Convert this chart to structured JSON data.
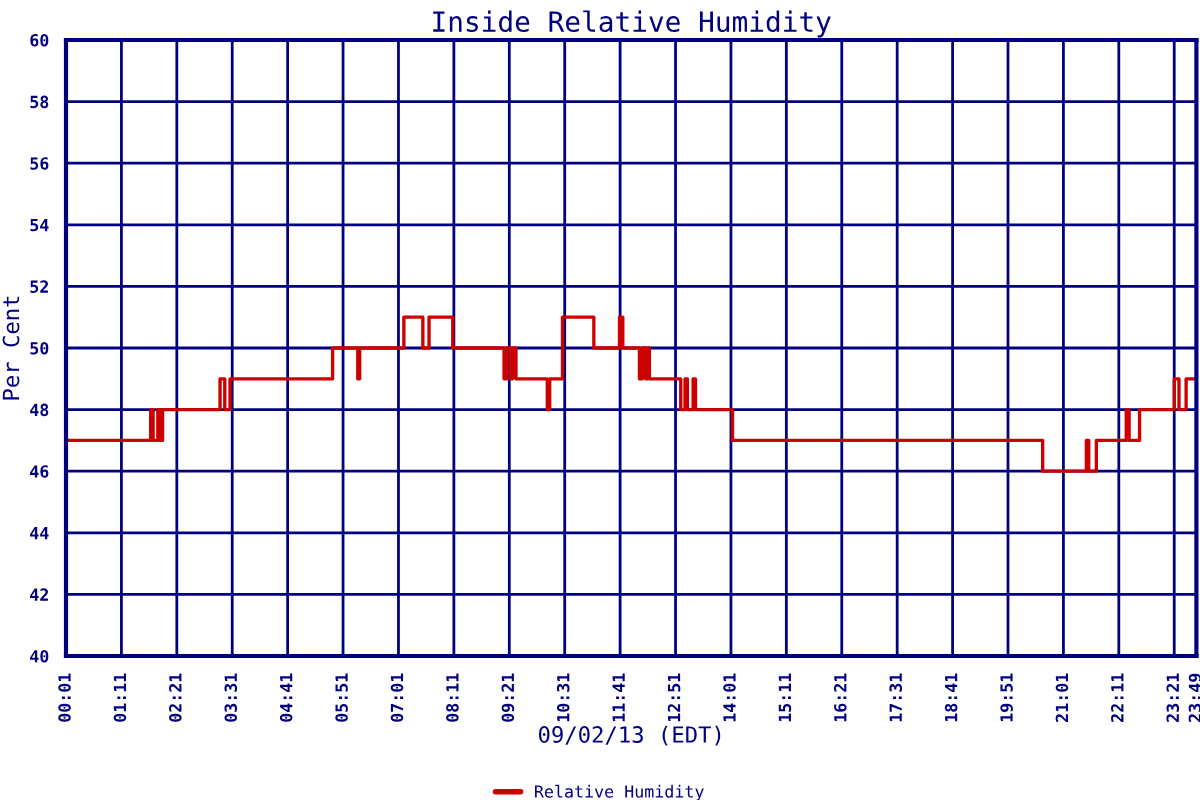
{
  "chart_data": {
    "type": "step",
    "title": "Inside Relative Humidity",
    "xlabel": "09/02/13 (EDT)",
    "ylabel": "Per Cent",
    "x": [
      0.0167,
      1.8,
      1.85,
      1.95,
      2.0,
      2.05,
      2.12,
      3.26,
      3.36,
      3.47,
      5.63,
      6.16,
      6.2,
      7.13,
      7.53,
      7.66,
      8.16,
      9.24,
      9.3,
      9.38,
      9.42,
      9.49,
      10.15,
      10.2,
      10.47,
      11.13,
      11.67,
      11.74,
      12.09,
      12.15,
      12.22,
      12.26,
      12.3,
      12.96,
      13.05,
      13.1,
      13.22,
      13.27,
      13.42,
      14.05,
      20.58,
      21.5,
      21.55,
      21.71,
      22.34,
      22.4,
      22.62,
      23.35,
      23.45,
      23.6,
      23.8
    ],
    "series": [
      {
        "name": "Relative Humidity",
        "color": "#cc0000",
        "values": [
          47,
          48,
          47,
          48,
          47,
          48,
          48,
          49,
          48,
          49,
          50,
          49,
          50,
          51,
          50,
          51,
          50,
          49,
          50,
          49,
          50,
          49,
          48,
          49,
          51,
          50,
          51,
          50,
          49,
          50,
          49,
          50,
          49,
          48,
          49,
          48,
          49,
          48,
          48,
          47,
          46,
          47,
          46,
          47,
          48,
          47,
          48,
          49,
          48,
          49,
          49
        ]
      }
    ],
    "xlim": [
      0.0167,
      23.8167
    ],
    "xticks": [
      {
        "value": 0.0167,
        "label": "00:01"
      },
      {
        "value": 1.1833,
        "label": "01:11"
      },
      {
        "value": 2.35,
        "label": "02:21"
      },
      {
        "value": 3.5167,
        "label": "03:31"
      },
      {
        "value": 4.6833,
        "label": "04:41"
      },
      {
        "value": 5.85,
        "label": "05:51"
      },
      {
        "value": 7.0167,
        "label": "07:01"
      },
      {
        "value": 8.1833,
        "label": "08:11"
      },
      {
        "value": 9.35,
        "label": "09:21"
      },
      {
        "value": 10.5167,
        "label": "10:31"
      },
      {
        "value": 11.6833,
        "label": "11:41"
      },
      {
        "value": 12.85,
        "label": "12:51"
      },
      {
        "value": 14.0167,
        "label": "14:01"
      },
      {
        "value": 15.1833,
        "label": "15:11"
      },
      {
        "value": 16.35,
        "label": "16:21"
      },
      {
        "value": 17.5167,
        "label": "17:31"
      },
      {
        "value": 18.6833,
        "label": "18:41"
      },
      {
        "value": 19.85,
        "label": "19:51"
      },
      {
        "value": 21.0167,
        "label": "21:01"
      },
      {
        "value": 22.1833,
        "label": "22:11"
      },
      {
        "value": 23.35,
        "label": "23:21"
      },
      {
        "value": 23.8167,
        "label": "23:49"
      }
    ],
    "ylim": [
      40,
      60
    ],
    "yticks": [
      40,
      42,
      44,
      46,
      48,
      50,
      52,
      54,
      56,
      58,
      60
    ],
    "grid": true,
    "legend": "bottom",
    "line_style": "solid",
    "marker": "none"
  }
}
